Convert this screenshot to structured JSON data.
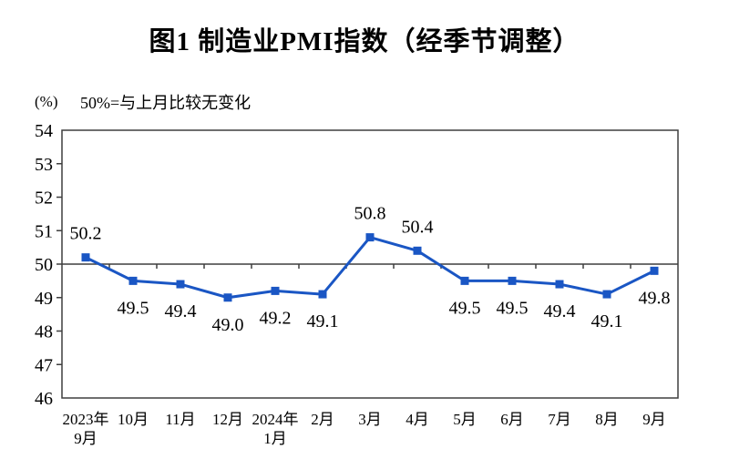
{
  "figure": {
    "title": "图1 制造业PMI指数（经季节调整）",
    "unit_label": "(%)",
    "note": "50%=与上月比较无变化"
  },
  "chart_data": {
    "type": "line",
    "title": "图1 制造业PMI指数（经季节调整）",
    "unit": "%",
    "note": "50%=与上月比较无变化",
    "categories": [
      [
        "2023年",
        "9月"
      ],
      [
        "10月"
      ],
      [
        "11月"
      ],
      [
        "12月"
      ],
      [
        "2024年",
        "1月"
      ],
      [
        "2月"
      ],
      [
        "3月"
      ],
      [
        "4月"
      ],
      [
        "5月"
      ],
      [
        "6月"
      ],
      [
        "7月"
      ],
      [
        "8月"
      ],
      [
        "9月"
      ]
    ],
    "series": [
      {
        "name": "制造业PMI指数",
        "values": [
          50.2,
          49.5,
          49.4,
          49.0,
          49.2,
          49.1,
          50.8,
          50.4,
          49.5,
          49.5,
          49.4,
          49.1,
          49.8
        ]
      }
    ],
    "data_labels": [
      "50.2",
      "49.5",
      "49.4",
      "49.0",
      "49.2",
      "49.1",
      "50.8",
      "50.4",
      "49.5",
      "49.5",
      "49.4",
      "49.1",
      "49.8"
    ],
    "ylim": [
      46,
      54
    ],
    "ytick_step": 1,
    "yticks": [
      46,
      47,
      48,
      49,
      50,
      51,
      52,
      53,
      54
    ],
    "reference_line": 50,
    "marker": "square",
    "grid": "off",
    "legend": "none",
    "colors": {
      "line": "#1a56c4",
      "axis": "#3f3f3f",
      "text": "#000000"
    }
  }
}
